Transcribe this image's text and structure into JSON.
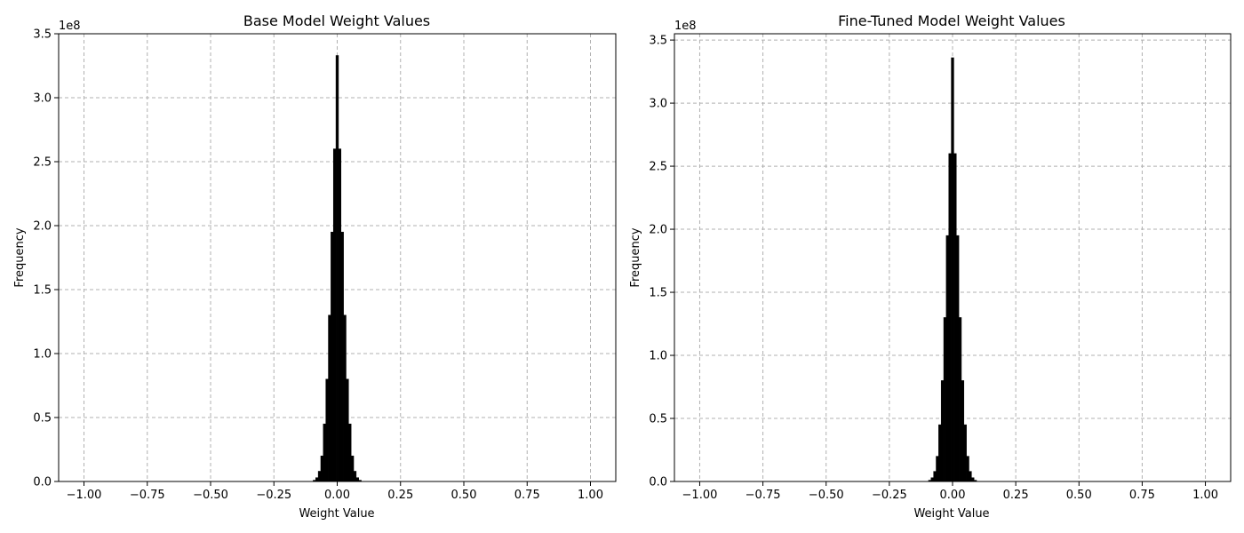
{
  "chart_data": [
    {
      "type": "bar",
      "title": "Base Model Weight Values",
      "xlabel": "Weight Value",
      "ylabel": "Frequency",
      "y_offset_label": "1e8",
      "xlim": [
        -1.1,
        1.1
      ],
      "ylim": [
        0,
        3.5
      ],
      "x_ticks": [
        -1.0,
        -0.75,
        -0.5,
        -0.25,
        0.0,
        0.25,
        0.5,
        0.75,
        1.0
      ],
      "x_tick_labels": [
        "−1.00",
        "−0.75",
        "−0.50",
        "−0.25",
        "0.00",
        "0.25",
        "0.50",
        "0.75",
        "1.00"
      ],
      "y_ticks": [
        0,
        0.5,
        1.0,
        1.5,
        2.0,
        2.5,
        3.0,
        3.5
      ],
      "y_tick_labels": [
        "0.0",
        "0.5",
        "1.0",
        "1.5",
        "2.0",
        "2.5",
        "3.0",
        "3.5"
      ],
      "grid": true,
      "bar_color": "#000000",
      "bins_x": [
        -0.1,
        -0.09,
        -0.08,
        -0.07,
        -0.06,
        -0.05,
        -0.04,
        -0.03,
        -0.02,
        -0.01,
        0.0,
        0.01,
        0.02,
        0.03,
        0.04,
        0.05,
        0.06,
        0.07,
        0.08,
        0.09,
        0.1
      ],
      "values": [
        0.0,
        0.01,
        0.03,
        0.08,
        0.2,
        0.45,
        0.8,
        1.3,
        1.95,
        2.6,
        3.33,
        2.6,
        1.95,
        1.3,
        0.8,
        0.45,
        0.2,
        0.08,
        0.03,
        0.01,
        0.0
      ],
      "bin_width": 0.01
    },
    {
      "type": "bar",
      "title": "Fine-Tuned Model Weight Values",
      "xlabel": "Weight Value",
      "ylabel": "Frequency",
      "y_offset_label": "1e8",
      "xlim": [
        -1.1,
        1.1
      ],
      "ylim": [
        0,
        3.55
      ],
      "x_ticks": [
        -1.0,
        -0.75,
        -0.5,
        -0.25,
        0.0,
        0.25,
        0.5,
        0.75,
        1.0
      ],
      "x_tick_labels": [
        "−1.00",
        "−0.75",
        "−0.50",
        "−0.25",
        "0.00",
        "0.25",
        "0.50",
        "0.75",
        "1.00"
      ],
      "y_ticks": [
        0,
        0.5,
        1.0,
        1.5,
        2.0,
        2.5,
        3.0,
        3.5
      ],
      "y_tick_labels": [
        "0.0",
        "0.5",
        "1.0",
        "1.5",
        "2.0",
        "2.5",
        "3.0",
        "3.5"
      ],
      "grid": true,
      "bar_color": "#000000",
      "bins_x": [
        -0.1,
        -0.09,
        -0.08,
        -0.07,
        -0.06,
        -0.05,
        -0.04,
        -0.03,
        -0.02,
        -0.01,
        0.0,
        0.01,
        0.02,
        0.03,
        0.04,
        0.05,
        0.06,
        0.07,
        0.08,
        0.09,
        0.1
      ],
      "values": [
        0.0,
        0.01,
        0.03,
        0.08,
        0.2,
        0.45,
        0.8,
        1.3,
        1.95,
        2.6,
        3.36,
        2.6,
        1.95,
        1.3,
        0.8,
        0.45,
        0.2,
        0.08,
        0.03,
        0.01,
        0.0
      ],
      "bin_width": 0.01
    }
  ]
}
